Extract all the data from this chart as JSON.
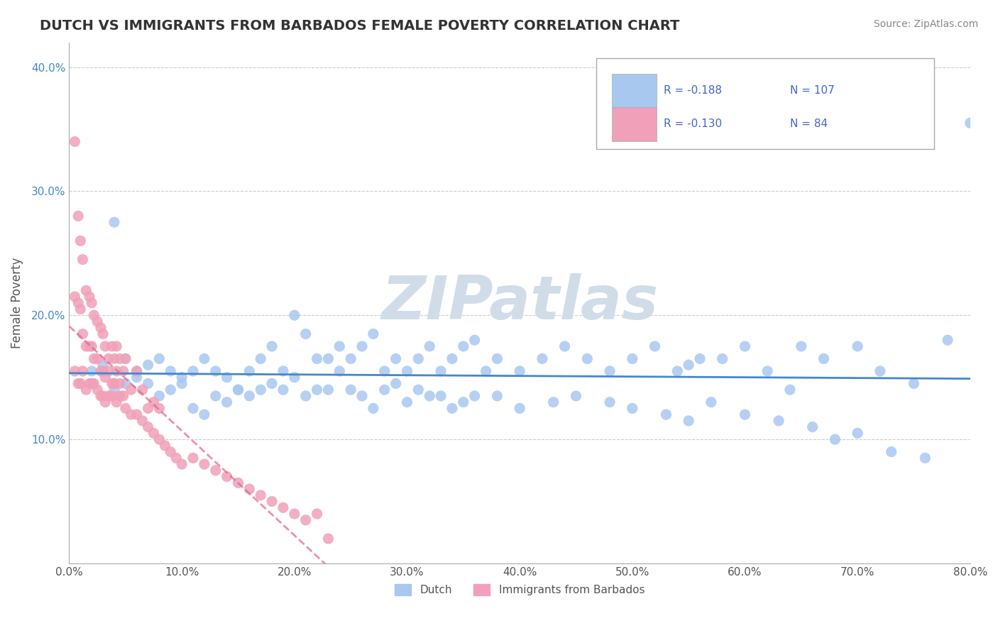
{
  "title": "DUTCH VS IMMIGRANTS FROM BARBADOS FEMALE POVERTY CORRELATION CHART",
  "source_text": "Source: ZipAtlas.com",
  "xlabel": "",
  "ylabel": "Female Poverty",
  "xlim": [
    0.0,
    0.8
  ],
  "ylim": [
    0.0,
    0.42
  ],
  "xticks": [
    0.0,
    0.1,
    0.2,
    0.3,
    0.4,
    0.5,
    0.6,
    0.7,
    0.8
  ],
  "xtick_labels": [
    "0.0%",
    "10.0%",
    "20.0%",
    "30.0%",
    "40.0%",
    "50.0%",
    "60.0%",
    "70.0%",
    "80.0%"
  ],
  "yticks": [
    0.0,
    0.1,
    0.2,
    0.3,
    0.4
  ],
  "ytick_labels": [
    "",
    "10.0%",
    "20.0%",
    "30.0%",
    "40.0%"
  ],
  "legend_labels": [
    "Dutch",
    "Immigrants from Barbados"
  ],
  "legend_r_dutch": "-0.188",
  "legend_n_dutch": "107",
  "legend_r_barbados": "-0.130",
  "legend_n_barbados": "84",
  "dutch_color": "#a8c8f0",
  "barbados_color": "#f0a0b8",
  "dutch_line_color": "#4488cc",
  "barbados_line_color": "#dd6688",
  "watermark_text": "ZIPatlas",
  "watermark_color": "#d0dde8",
  "background_color": "#ffffff",
  "grid_color": "#cccccc",
  "title_color": "#333333",
  "axis_color": "#555555",
  "legend_text_color": "#4466cc",
  "dutch_scatter": {
    "x": [
      0.02,
      0.03,
      0.04,
      0.05,
      0.06,
      0.07,
      0.08,
      0.09,
      0.1,
      0.11,
      0.12,
      0.13,
      0.14,
      0.15,
      0.16,
      0.17,
      0.18,
      0.19,
      0.2,
      0.21,
      0.22,
      0.23,
      0.24,
      0.25,
      0.26,
      0.27,
      0.28,
      0.29,
      0.3,
      0.31,
      0.32,
      0.33,
      0.34,
      0.35,
      0.36,
      0.37,
      0.38,
      0.4,
      0.42,
      0.44,
      0.46,
      0.48,
      0.5,
      0.52,
      0.54,
      0.55,
      0.56,
      0.58,
      0.6,
      0.62,
      0.64,
      0.65,
      0.67,
      0.7,
      0.72,
      0.75,
      0.78,
      0.8,
      0.04,
      0.05,
      0.06,
      0.07,
      0.08,
      0.09,
      0.1,
      0.11,
      0.12,
      0.13,
      0.14,
      0.15,
      0.16,
      0.17,
      0.18,
      0.19,
      0.2,
      0.21,
      0.22,
      0.23,
      0.24,
      0.25,
      0.26,
      0.27,
      0.28,
      0.29,
      0.3,
      0.31,
      0.32,
      0.33,
      0.34,
      0.35,
      0.36,
      0.38,
      0.4,
      0.43,
      0.45,
      0.48,
      0.5,
      0.53,
      0.55,
      0.57,
      0.6,
      0.63,
      0.66,
      0.68,
      0.7,
      0.73,
      0.76
    ],
    "y": [
      0.155,
      0.16,
      0.14,
      0.145,
      0.15,
      0.16,
      0.165,
      0.155,
      0.15,
      0.155,
      0.165,
      0.155,
      0.15,
      0.14,
      0.155,
      0.165,
      0.175,
      0.155,
      0.2,
      0.185,
      0.165,
      0.165,
      0.175,
      0.165,
      0.175,
      0.185,
      0.155,
      0.165,
      0.155,
      0.165,
      0.175,
      0.155,
      0.165,
      0.175,
      0.18,
      0.155,
      0.165,
      0.155,
      0.165,
      0.175,
      0.165,
      0.155,
      0.165,
      0.175,
      0.155,
      0.16,
      0.165,
      0.165,
      0.175,
      0.155,
      0.14,
      0.175,
      0.165,
      0.175,
      0.155,
      0.145,
      0.18,
      0.355,
      0.275,
      0.165,
      0.155,
      0.145,
      0.135,
      0.14,
      0.145,
      0.125,
      0.12,
      0.135,
      0.13,
      0.14,
      0.135,
      0.14,
      0.145,
      0.14,
      0.15,
      0.135,
      0.14,
      0.14,
      0.155,
      0.14,
      0.135,
      0.125,
      0.14,
      0.145,
      0.13,
      0.14,
      0.135,
      0.135,
      0.125,
      0.13,
      0.135,
      0.135,
      0.125,
      0.13,
      0.135,
      0.13,
      0.125,
      0.12,
      0.115,
      0.13,
      0.12,
      0.115,
      0.11,
      0.1,
      0.105,
      0.09,
      0.085
    ]
  },
  "barbados_scatter": {
    "x": [
      0.005,
      0.008,
      0.01,
      0.012,
      0.015,
      0.018,
      0.02,
      0.022,
      0.025,
      0.028,
      0.03,
      0.032,
      0.035,
      0.038,
      0.04,
      0.042,
      0.045,
      0.048,
      0.05,
      0.055,
      0.06,
      0.065,
      0.07,
      0.075,
      0.08,
      0.005,
      0.008,
      0.01,
      0.012,
      0.015,
      0.018,
      0.02,
      0.022,
      0.025,
      0.028,
      0.03,
      0.032,
      0.035,
      0.038,
      0.04,
      0.042,
      0.045,
      0.005,
      0.008,
      0.01,
      0.012,
      0.015,
      0.018,
      0.02,
      0.022,
      0.025,
      0.028,
      0.03,
      0.032,
      0.035,
      0.038,
      0.04,
      0.042,
      0.045,
      0.048,
      0.05,
      0.055,
      0.06,
      0.065,
      0.07,
      0.075,
      0.08,
      0.085,
      0.09,
      0.095,
      0.1,
      0.11,
      0.12,
      0.13,
      0.14,
      0.15,
      0.16,
      0.17,
      0.18,
      0.19,
      0.2,
      0.21,
      0.22,
      0.23
    ],
    "y": [
      0.34,
      0.28,
      0.26,
      0.245,
      0.22,
      0.215,
      0.21,
      0.2,
      0.195,
      0.19,
      0.185,
      0.175,
      0.165,
      0.175,
      0.165,
      0.175,
      0.165,
      0.155,
      0.165,
      0.14,
      0.155,
      0.14,
      0.125,
      0.13,
      0.125,
      0.215,
      0.21,
      0.205,
      0.185,
      0.175,
      0.175,
      0.175,
      0.165,
      0.165,
      0.155,
      0.155,
      0.15,
      0.155,
      0.145,
      0.145,
      0.155,
      0.145,
      0.155,
      0.145,
      0.145,
      0.155,
      0.14,
      0.145,
      0.145,
      0.145,
      0.14,
      0.135,
      0.135,
      0.13,
      0.135,
      0.135,
      0.145,
      0.13,
      0.135,
      0.135,
      0.125,
      0.12,
      0.12,
      0.115,
      0.11,
      0.105,
      0.1,
      0.095,
      0.09,
      0.085,
      0.08,
      0.085,
      0.08,
      0.075,
      0.07,
      0.065,
      0.06,
      0.055,
      0.05,
      0.045,
      0.04,
      0.035,
      0.04,
      0.02
    ]
  }
}
